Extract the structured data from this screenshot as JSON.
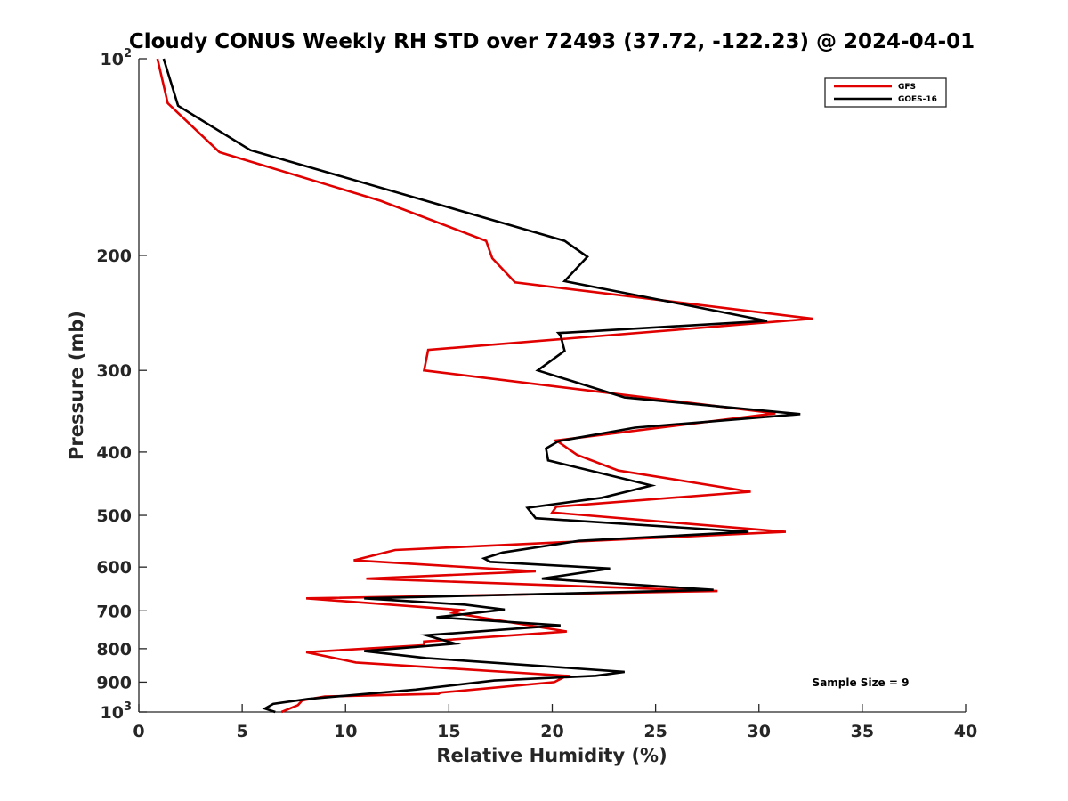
{
  "chart_data": {
    "type": "line",
    "title": "Cloudy CONUS Weekly RH STD over 72493 (37.72, -122.23) @ 2024-04-01",
    "xlabel": "Relative Humidity (%)",
    "ylabel": "Pressure (mb)",
    "xlim": [
      0,
      40
    ],
    "ylim": [
      100,
      1000
    ],
    "y_scale": "log",
    "y_reversed": true,
    "x_ticks": [
      0,
      5,
      10,
      15,
      20,
      25,
      30,
      35,
      40
    ],
    "y_ticks": [
      {
        "value": 100,
        "base": "10",
        "exp": "2"
      },
      {
        "value": 200,
        "label": "200"
      },
      {
        "value": 300,
        "label": "300"
      },
      {
        "value": 400,
        "label": "400"
      },
      {
        "value": 500,
        "label": "500"
      },
      {
        "value": 600,
        "label": "600"
      },
      {
        "value": 700,
        "label": "700"
      },
      {
        "value": 800,
        "label": "800"
      },
      {
        "value": 900,
        "label": "900"
      },
      {
        "value": 1000,
        "base": "10",
        "exp": "3"
      }
    ],
    "grid": false,
    "legend_position": "top-right",
    "annotation": "Sample Size = 9",
    "series": [
      {
        "name": "GFS",
        "color": "#e00000",
        "rh": [
          0.9,
          1.4,
          3.9,
          11.7,
          16.8,
          17.1,
          18.2,
          32.6,
          14.0,
          13.8,
          30.8,
          20.2,
          21.2,
          23.2,
          29.6,
          20.2,
          20.0,
          31.3,
          12.4,
          10.4,
          19.2,
          11.0,
          28.0,
          8.1,
          15.6,
          15.2,
          20.7,
          13.8,
          13.8,
          8.1,
          10.5,
          20.7,
          20.1,
          14.6,
          14.5,
          9.0,
          7.9,
          7.7,
          6.9
        ],
        "pressure": [
          100,
          117,
          139,
          165,
          190,
          202,
          220,
          250,
          279,
          300,
          349,
          384,
          404,
          427,
          460,
          485,
          495,
          530,
          565,
          586,
          609,
          625,
          653,
          670,
          698,
          705,
          753,
          780,
          790,
          810,
          840,
          880,
          900,
          934,
          938,
          947,
          960,
          976,
          1000
        ]
      },
      {
        "name": "GOES-16",
        "color": "#000000",
        "rh": [
          1.2,
          1.9,
          5.4,
          20.6,
          21.7,
          20.6,
          30.4,
          20.3,
          20.4,
          20.6,
          19.3,
          23.5,
          32.0,
          24.0,
          20.3,
          19.7,
          19.8,
          24.8,
          22.4,
          18.8,
          19.2,
          29.5,
          21.3,
          17.6,
          16.7,
          17.0,
          22.8,
          19.5,
          27.8,
          10.9,
          15.8,
          17.7,
          14.4,
          20.4,
          13.9,
          15.3,
          10.9,
          13.9,
          23.5,
          22.1,
          17.2,
          13.4,
          8.2,
          6.5,
          6.1,
          6.6
        ],
        "pressure": [
          100,
          118,
          138,
          190,
          201,
          219,
          252,
          263,
          265,
          280,
          300,
          330,
          350,
          367,
          385,
          395,
          412,
          450,
          470,
          487,
          505,
          530,
          547,
          570,
          582,
          589,
          603,
          625,
          650,
          670,
          685,
          697,
          716,
          737,
          763,
          786,
          807,
          827,
          868,
          880,
          895,
          924,
          955,
          972,
          988,
          1000
        ]
      }
    ]
  }
}
